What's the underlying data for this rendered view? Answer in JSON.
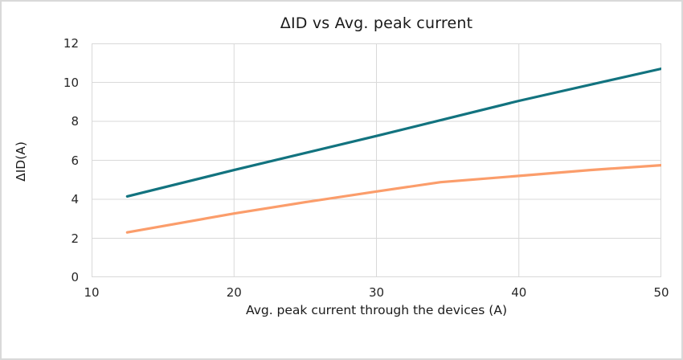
{
  "window": {
    "background": "#ffffff",
    "border_color": "#d9d9d9"
  },
  "chart_data": {
    "type": "line",
    "title": "ΔID vs Avg. peak current",
    "xlabel": "Avg. peak current through the devices (A)",
    "ylabel": "ΔID(A)",
    "xlim": [
      10,
      50
    ],
    "ylim": [
      0,
      12
    ],
    "x_ticks": [
      "10",
      "20",
      "30",
      "40",
      "50"
    ],
    "y_ticks": [
      "0",
      "2",
      "4",
      "6",
      "8",
      "10",
      "12"
    ],
    "grid": true,
    "plot_border": true,
    "legend_position": "none",
    "gridline_color": "#d9d9d9",
    "text_color": "#262626",
    "series": [
      {
        "name": "upper-teal-line",
        "color": "#12737F",
        "width": 3.2,
        "points": [
          [
            12.5,
            4.15
          ],
          [
            20,
            5.5
          ],
          [
            30,
            7.25
          ],
          [
            40,
            9.05
          ],
          [
            50,
            10.7
          ]
        ]
      },
      {
        "name": "lower-orange-line",
        "color": "#FB9D6B",
        "width": 3.2,
        "points": [
          [
            12.5,
            2.3
          ],
          [
            20,
            3.27
          ],
          [
            25,
            3.85
          ],
          [
            30,
            4.4
          ],
          [
            34.5,
            4.88
          ],
          [
            40,
            5.2
          ],
          [
            45,
            5.5
          ],
          [
            50,
            5.75
          ]
        ]
      }
    ]
  }
}
